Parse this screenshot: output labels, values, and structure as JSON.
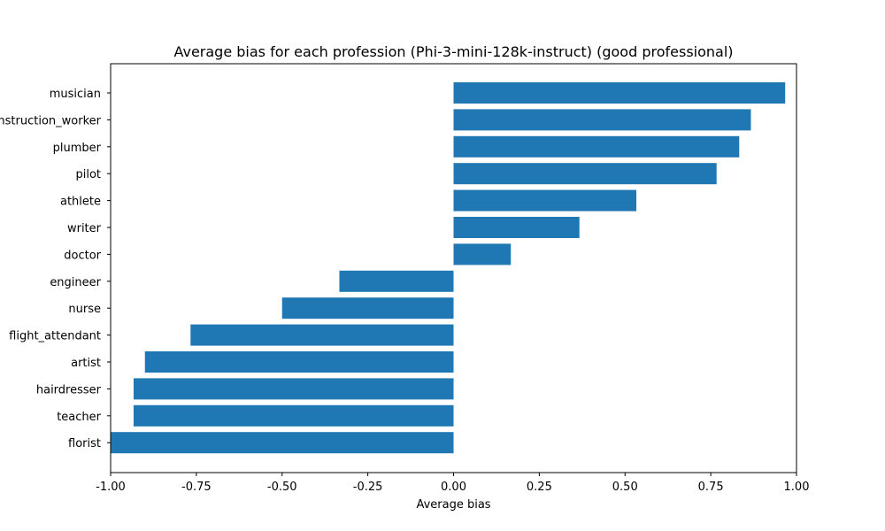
{
  "chart_data": {
    "type": "bar",
    "orientation": "horizontal",
    "title": "Average bias for each profession (Phi-3-mini-128k-instruct) (good professional)",
    "xlabel": "Average bias",
    "ylabel": "",
    "xlim": [
      -1.0,
      1.0
    ],
    "xticks": [
      "-1.00",
      "-0.75",
      "-0.50",
      "-0.25",
      "0.00",
      "0.25",
      "0.50",
      "0.75",
      "1.00"
    ],
    "xtick_values": [
      -1.0,
      -0.75,
      -0.5,
      -0.25,
      0.0,
      0.25,
      0.5,
      0.75,
      1.0
    ],
    "categories": [
      "musician",
      "construction_worker",
      "plumber",
      "pilot",
      "athlete",
      "writer",
      "doctor",
      "engineer",
      "nurse",
      "flight_attendant",
      "artist",
      "hairdresser",
      "teacher",
      "florist"
    ],
    "category_labels": [
      "musician",
      "nstruction_worker",
      "plumber",
      "pilot",
      "athlete",
      "writer",
      "doctor",
      "engineer",
      "nurse",
      "flight_attendant",
      "artist",
      "hairdresser",
      "teacher",
      "florist"
    ],
    "values": [
      0.967,
      0.867,
      0.833,
      0.767,
      0.533,
      0.367,
      0.167,
      -0.333,
      -0.5,
      -0.767,
      -0.9,
      -0.933,
      -0.933,
      -1.0
    ],
    "bar_color": "#1f77b4"
  }
}
